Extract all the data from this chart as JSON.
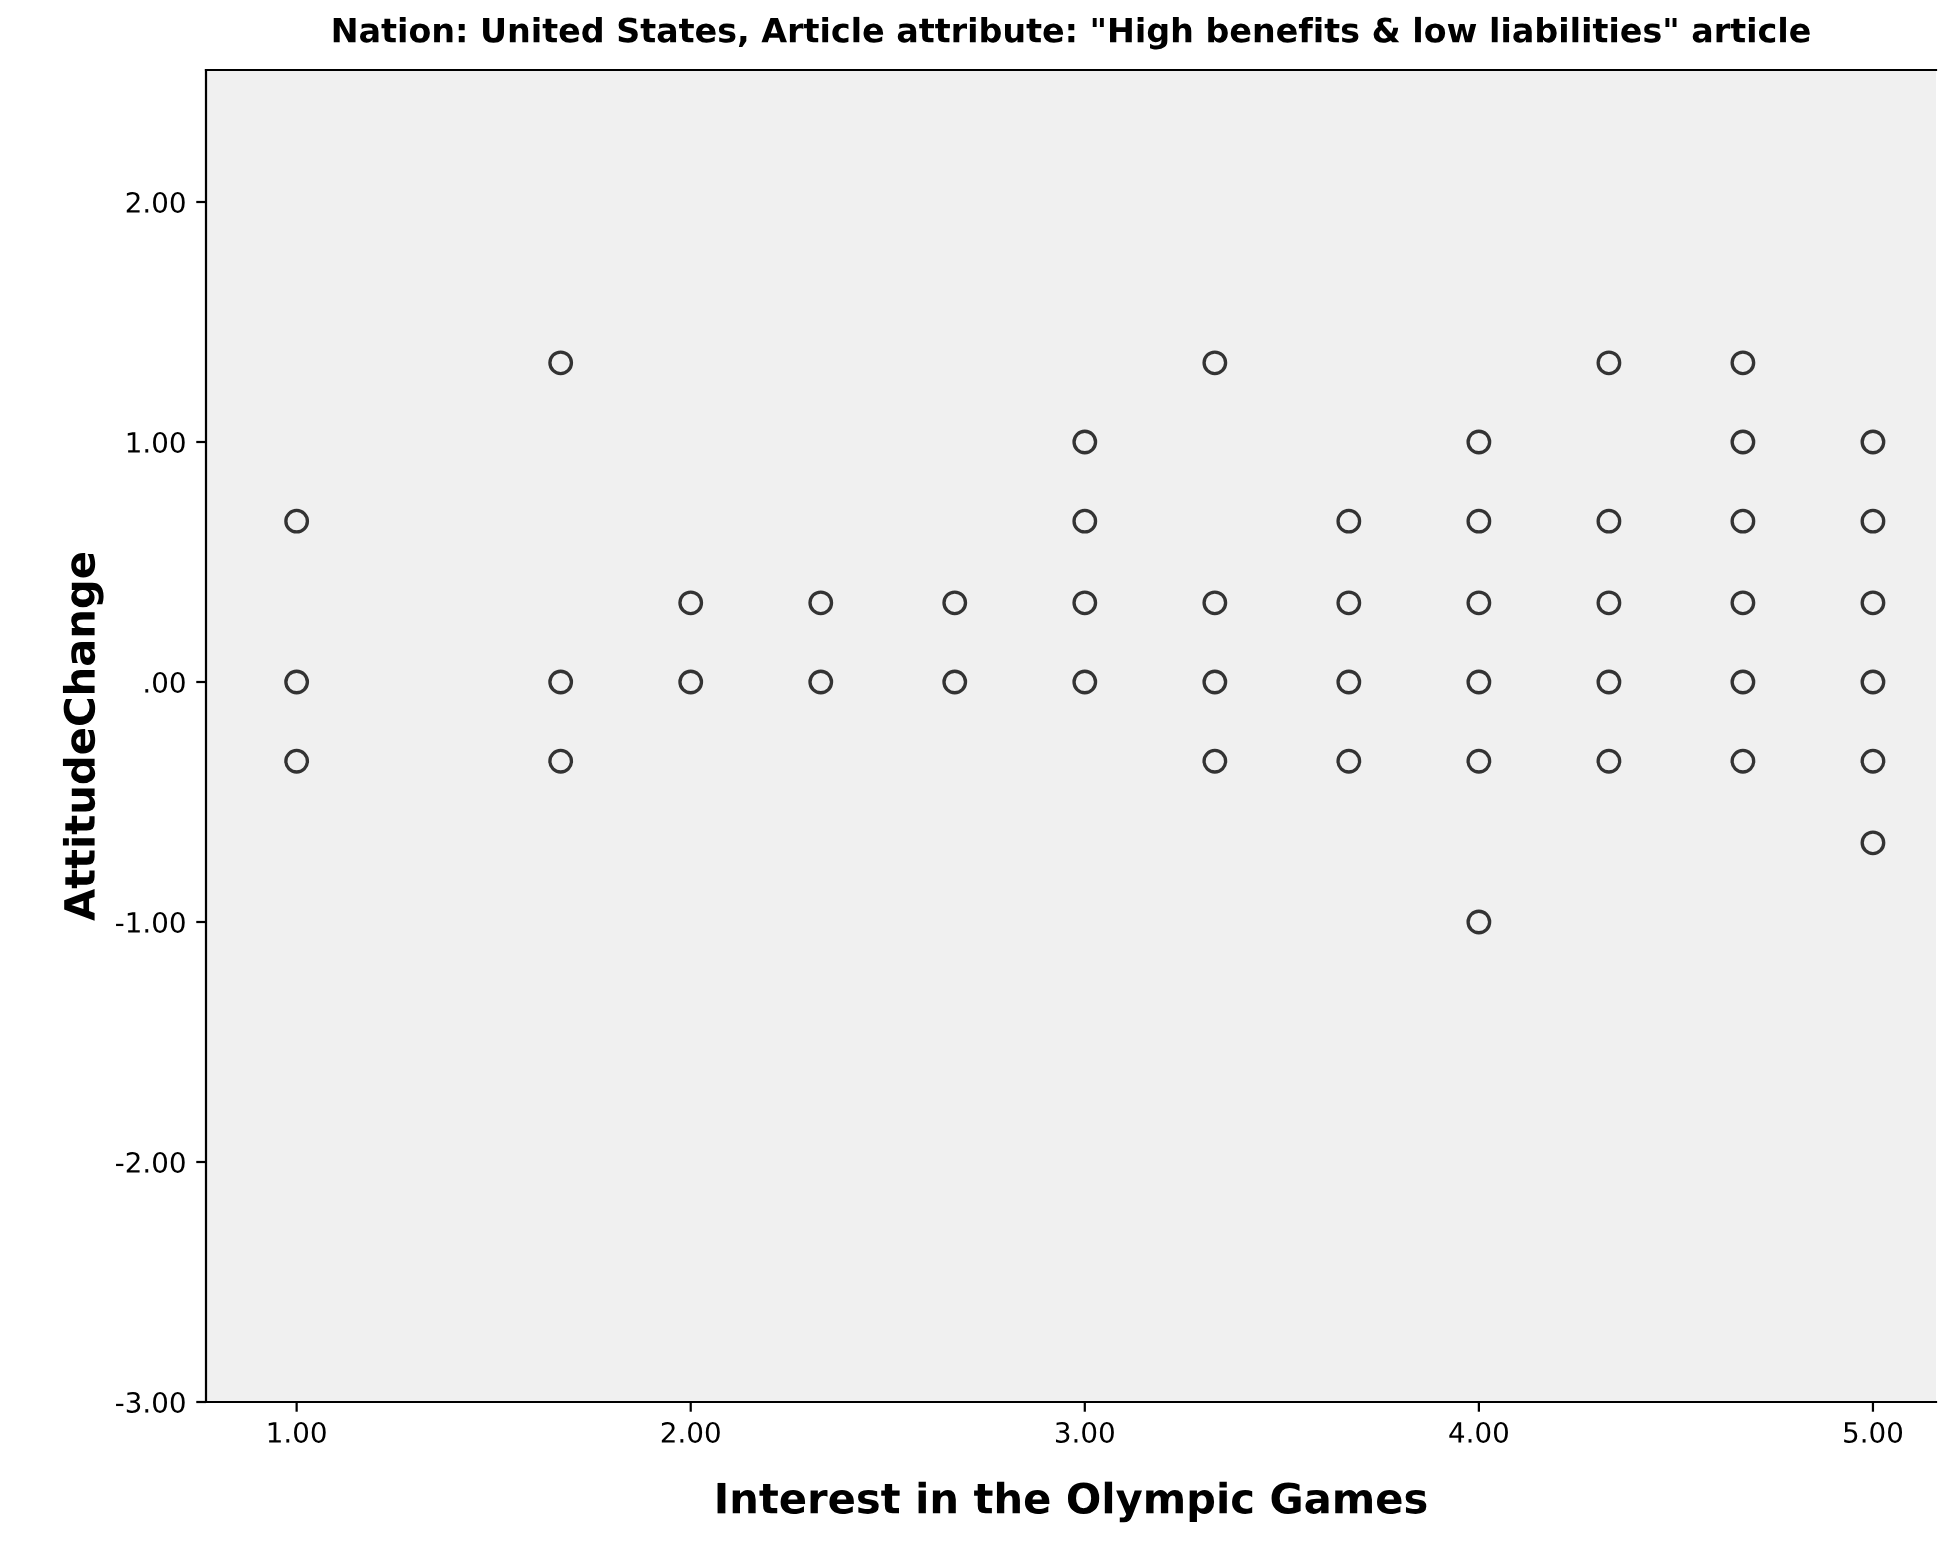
{
  "chart_data": {
    "type": "scatter",
    "title": "Nation: United States, Article attribute: \"High benefits & low liabilities\" article",
    "xlabel": "Interest in the Olympic Games",
    "ylabel": "AttitudeChange",
    "x": [
      1,
      1,
      1,
      1.67,
      1.67,
      1.67,
      2,
      2,
      2.33,
      2.33,
      2.67,
      2.67,
      3,
      3,
      3,
      3,
      3.33,
      3.33,
      3.33,
      3.33,
      3.67,
      3.67,
      3.67,
      3.67,
      4,
      4,
      4,
      4,
      4,
      4,
      4.33,
      4.33,
      4.33,
      4.33,
      4.33,
      4.67,
      4.67,
      4.67,
      4.67,
      4.67,
      4.67,
      5,
      5,
      5,
      5,
      5,
      5
    ],
    "values": [
      0.67,
      0,
      -0.33,
      1.33,
      0,
      -0.33,
      0.33,
      0,
      0.33,
      0,
      0.33,
      0,
      1,
      0.67,
      0.33,
      0,
      1.33,
      0.33,
      0,
      -0.33,
      0.67,
      0.33,
      0,
      -0.33,
      1,
      0.67,
      0.33,
      0,
      -0.33,
      -1,
      1.33,
      0.67,
      0.33,
      0,
      -0.33,
      1.33,
      1,
      0.67,
      0.33,
      0,
      -0.33,
      1,
      0.67,
      0.33,
      0,
      -0.33,
      -0.67
    ],
    "color": "#333333",
    "marker": "circle",
    "grid": false,
    "xlim": [
      0.77,
      5.16
    ],
    "ylim": [
      -3,
      2.55
    ],
    "xticks": [
      {
        "value": 1,
        "label": "1.00"
      },
      {
        "value": 2,
        "label": "2.00"
      },
      {
        "value": 3,
        "label": "3.00"
      },
      {
        "value": 4,
        "label": "4.00"
      },
      {
        "value": 5,
        "label": "5.00"
      }
    ],
    "yticks": [
      {
        "value": -3,
        "label": "-3.00"
      },
      {
        "value": -2,
        "label": "-2.00"
      },
      {
        "value": -1,
        "label": "-1.00"
      },
      {
        "value": 0,
        "label": ".00"
      },
      {
        "value": 1,
        "label": "1.00"
      },
      {
        "value": 2,
        "label": "2.00"
      }
    ]
  }
}
